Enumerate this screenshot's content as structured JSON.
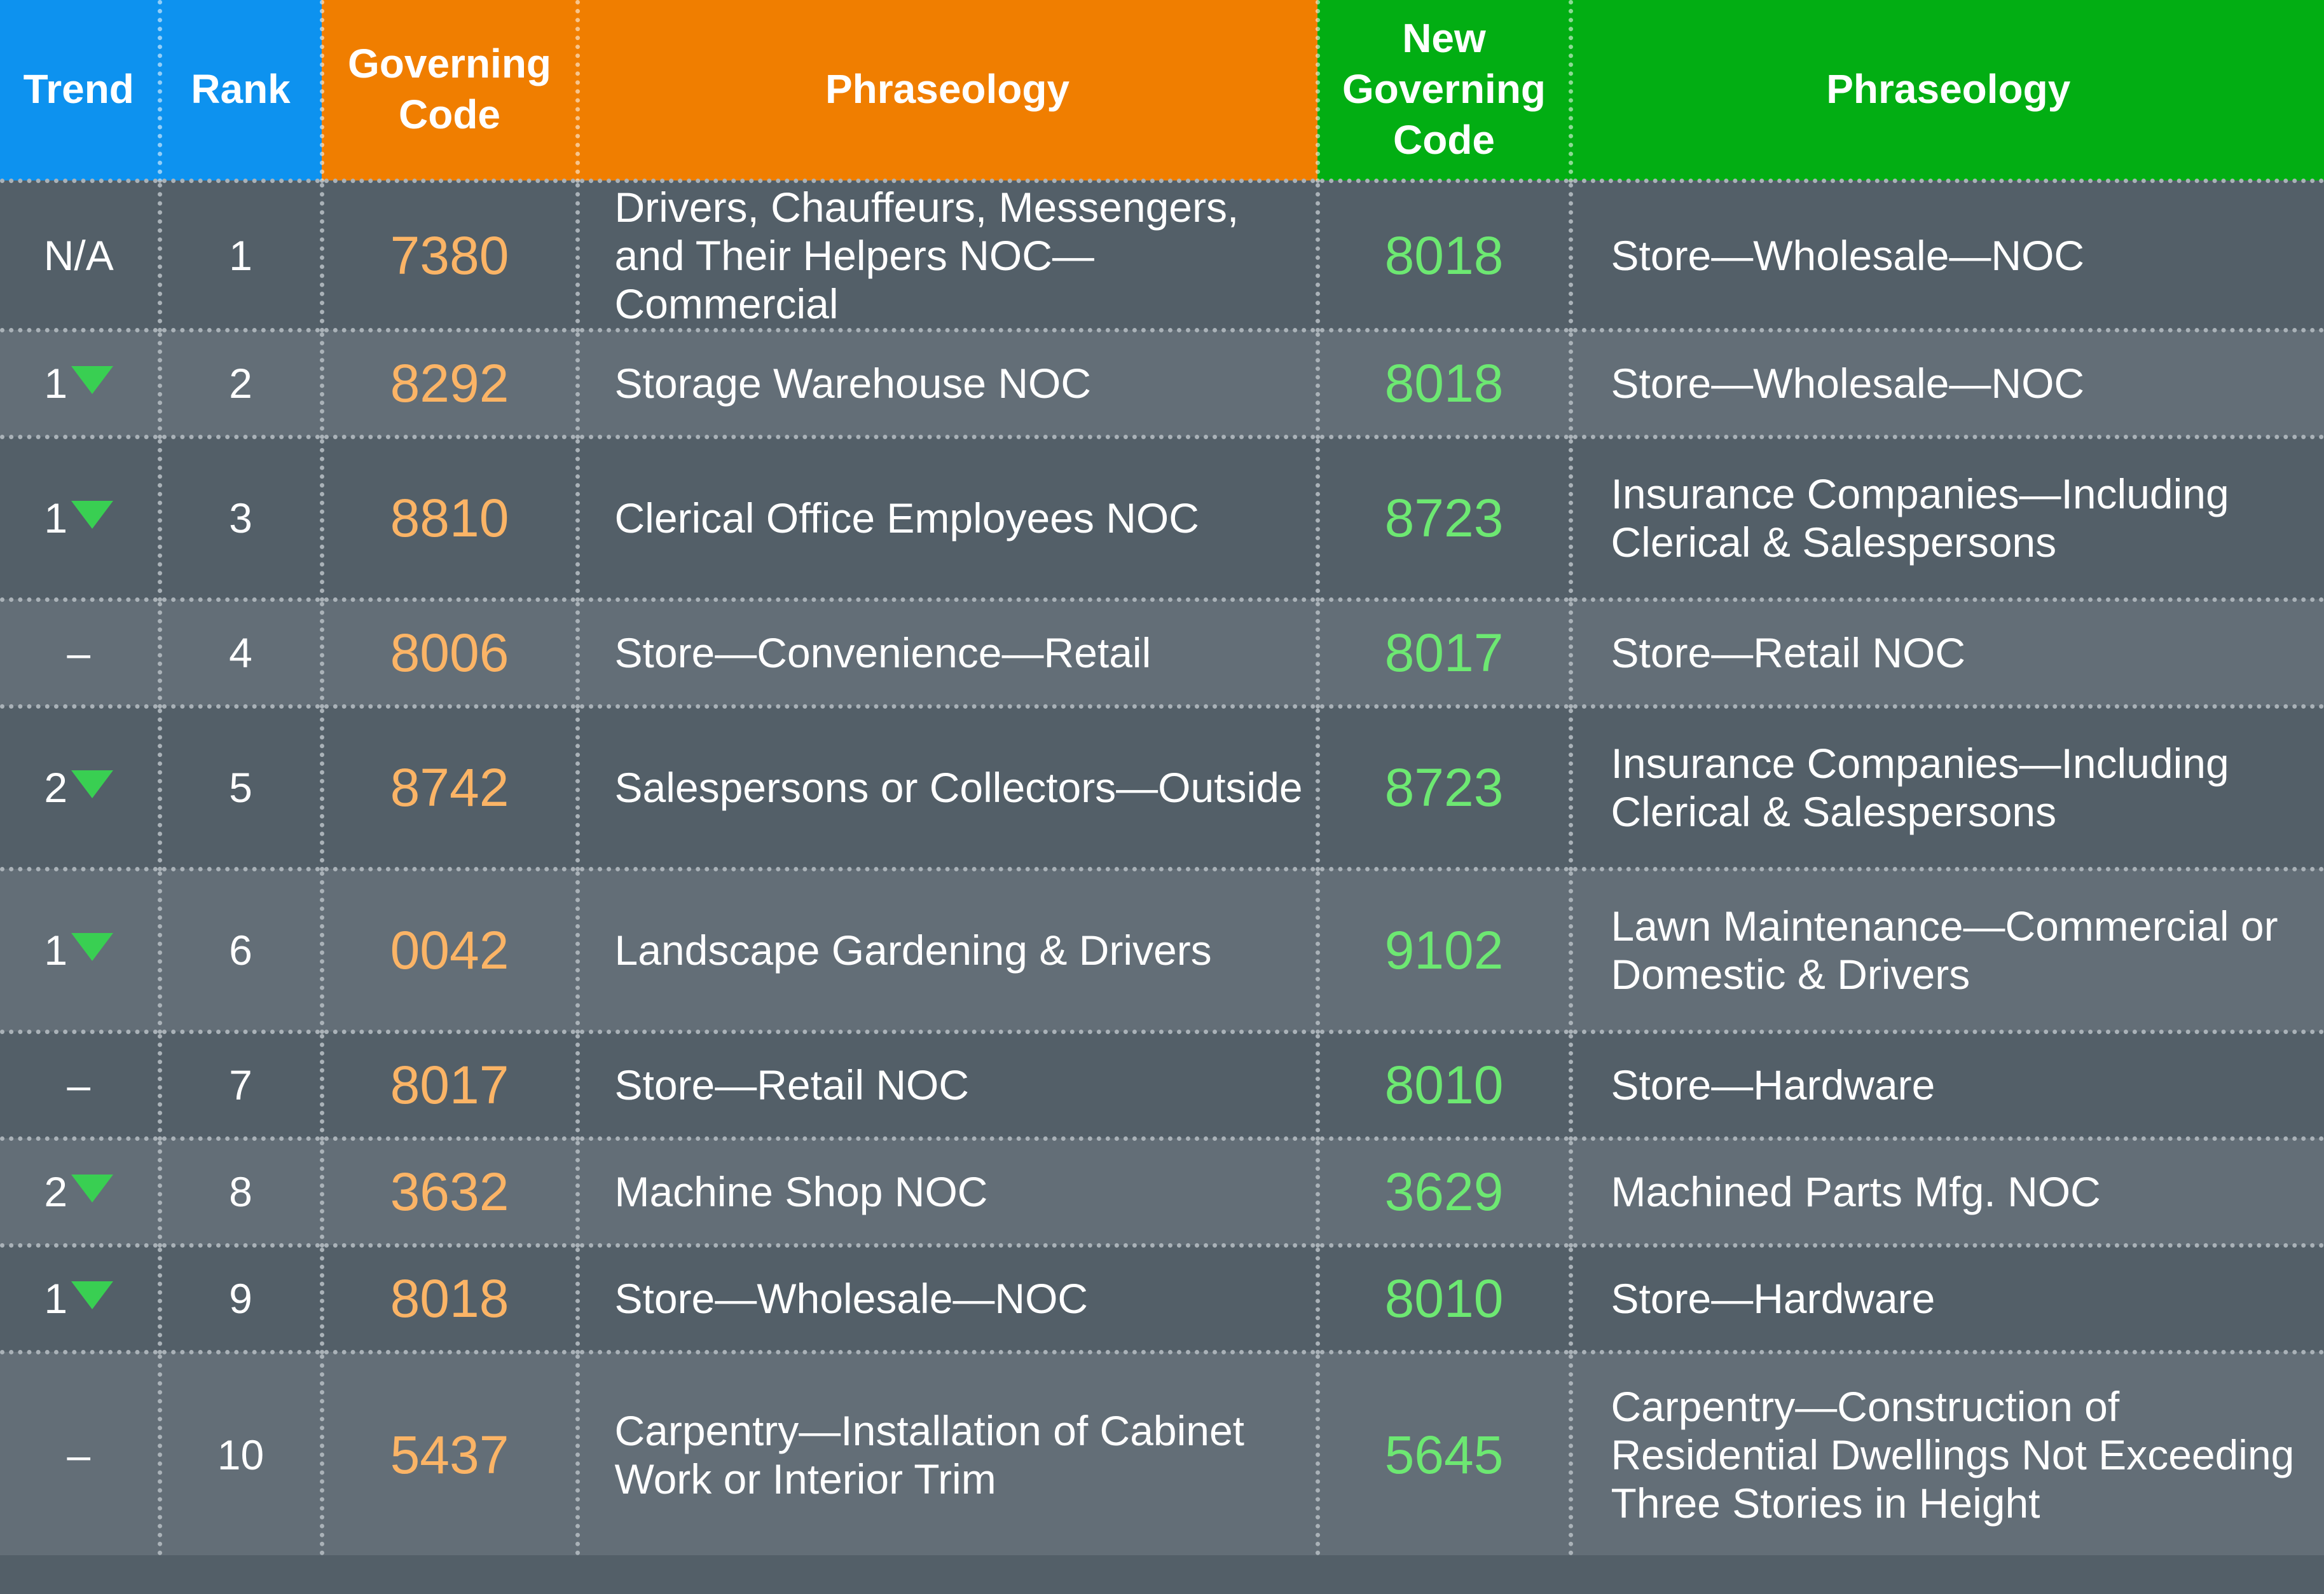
{
  "header": {
    "trend": "Trend",
    "rank": "Rank",
    "governing_code": "Governing Code",
    "phraseology": "Phraseology",
    "new_governing_code": "New Governing Code",
    "new_phraseology": "Phraseology"
  },
  "colors": {
    "header_blue": "#0d92ef",
    "header_orange": "#f07e00",
    "header_green": "#02ae13",
    "code_orange": "#fbb466",
    "code_green": "#6de872",
    "trend_down": "#39cf52",
    "row_dark": "#535f68",
    "row_light": "#636e77"
  },
  "rows": [
    {
      "trend": "N/A",
      "trend_down": false,
      "rank": "1",
      "code": "7380",
      "phraseology": "Drivers, Chauffeurs, Messengers, and Their Helpers NOC—Commercial",
      "new_code": "8018",
      "new_phraseology": "Store—Wholesale—NOC"
    },
    {
      "trend": "1",
      "trend_down": true,
      "rank": "2",
      "code": "8292",
      "phraseology": "Storage Warehouse NOC",
      "new_code": "8018",
      "new_phraseology": "Store—Wholesale—NOC"
    },
    {
      "trend": "1",
      "trend_down": true,
      "rank": "3",
      "code": "8810",
      "phraseology": "Clerical Office Employees NOC",
      "new_code": "8723",
      "new_phraseology": "Insurance Companies—Including Clerical & Salespersons"
    },
    {
      "trend": "–",
      "trend_down": false,
      "rank": "4",
      "code": "8006",
      "phraseology": "Store—Convenience—Retail",
      "new_code": "8017",
      "new_phraseology": "Store—Retail NOC"
    },
    {
      "trend": "2",
      "trend_down": true,
      "rank": "5",
      "code": "8742",
      "phraseology": "Salespersons or Collectors—Outside",
      "new_code": "8723",
      "new_phraseology": "Insurance Companies—Including Clerical & Salespersons"
    },
    {
      "trend": "1",
      "trend_down": true,
      "rank": "6",
      "code": "0042",
      "phraseology": "Landscape Gardening & Drivers",
      "new_code": "9102",
      "new_phraseology": "Lawn Maintenance—Commercial or Domestic & Drivers"
    },
    {
      "trend": "–",
      "trend_down": false,
      "rank": "7",
      "code": "8017",
      "phraseology": "Store—Retail NOC",
      "new_code": "8010",
      "new_phraseology": "Store—Hardware"
    },
    {
      "trend": "2",
      "trend_down": true,
      "rank": "8",
      "code": "3632",
      "phraseology": "Machine Shop NOC",
      "new_code": "3629",
      "new_phraseology": "Machined Parts Mfg. NOC"
    },
    {
      "trend": "1",
      "trend_down": true,
      "rank": "9",
      "code": "8018",
      "phraseology": "Store—Wholesale—NOC",
      "new_code": "8010",
      "new_phraseology": "Store—Hardware"
    },
    {
      "trend": "–",
      "trend_down": false,
      "rank": "10",
      "code": "5437",
      "phraseology": "Carpentry—Installation of Cabinet Work or Interior Trim",
      "new_code": "5645",
      "new_phraseology": "Carpentry—Construction of Residential Dwellings Not Exceeding Three Stories in Height"
    }
  ]
}
